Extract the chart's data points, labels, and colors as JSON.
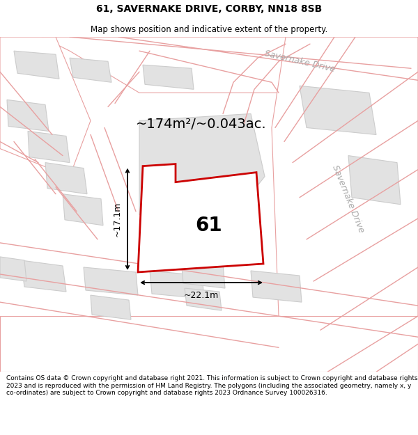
{
  "title": "61, SAVERNAKE DRIVE, CORBY, NN18 8SB",
  "subtitle": "Map shows position and indicative extent of the property.",
  "footer": "Contains OS data © Crown copyright and database right 2021. This information is subject to Crown copyright and database rights 2023 and is reproduced with the permission of HM Land Registry. The polygons (including the associated geometry, namely x, y co-ordinates) are subject to Crown copyright and database rights 2023 Ordnance Survey 100026316.",
  "area_label": "~174m²/~0.043ac.",
  "property_number": "61",
  "width_label": "~22.1m",
  "height_label": "~17.1m",
  "road_label_top": "Savernake Drive",
  "road_label_right": "Savernake Drive",
  "bg_color": "#ffffff",
  "map_bg": "#f7f7f7",
  "building_fill": "#e2e2e2",
  "building_edge": "#cccccc",
  "road_fill": "#ffffff",
  "road_stroke": "#e8a0a0",
  "property_stroke": "#cc0000",
  "property_fill": "#ffffff",
  "dim_line_color": "#000000",
  "road_label_color": "#aaaaaa",
  "title_fontsize": 10,
  "subtitle_fontsize": 8.5,
  "footer_fontsize": 6.5
}
